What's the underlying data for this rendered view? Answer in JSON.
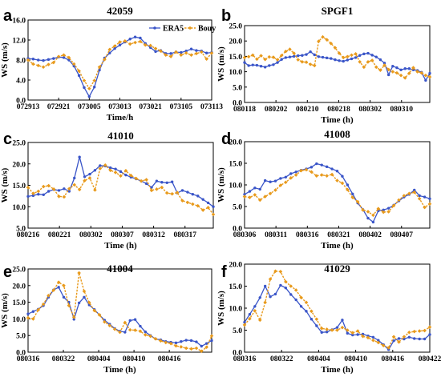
{
  "colors": {
    "era5": "#3A55C8",
    "buoy": "#E89A1C"
  },
  "legend": {
    "era5": "ERA5",
    "buoy": "Bouy",
    "placement": "top-right of panel a"
  },
  "chart_data": [
    {
      "type": "line",
      "letter": "a",
      "title": "42059",
      "xlabel": "Time/h",
      "ylabel": "WS (m/s)",
      "ylim": [
        0,
        16
      ],
      "yticks": [
        "0.0",
        "4.0",
        "8.0",
        "12.0",
        "16.0"
      ],
      "xticks": [
        "072913",
        "072921",
        "073005",
        "073013",
        "073021",
        "073105",
        "073113"
      ],
      "xlim": [
        0,
        36
      ],
      "series": [
        {
          "name": "ERA5",
          "x": [
            0,
            1,
            2,
            3,
            4,
            5,
            6,
            7,
            8,
            9,
            10,
            11,
            12,
            13,
            14,
            15,
            16,
            17,
            18,
            19,
            20,
            21,
            22,
            23,
            24,
            25,
            26,
            27,
            28,
            29,
            30,
            31,
            32,
            33,
            34,
            35,
            36
          ],
          "values": [
            8.3,
            8.2,
            8.0,
            7.9,
            8.1,
            8.3,
            8.6,
            8.5,
            8.0,
            6.8,
            4.9,
            2.5,
            0.7,
            2.6,
            6.0,
            8.4,
            9.4,
            10.3,
            11.0,
            11.6,
            12.2,
            12.6,
            12.4,
            11.3,
            10.5,
            9.7,
            9.9,
            9.3,
            9.3,
            9.6,
            9.5,
            9.8,
            10.2,
            9.9,
            9.8,
            9.4,
            9.5
          ]
        },
        {
          "name": "Bouy",
          "x": [
            0,
            1,
            2,
            3,
            4,
            5,
            6,
            7,
            8,
            9,
            10,
            11,
            12,
            13,
            14,
            15,
            16,
            17,
            18,
            19,
            20,
            21,
            22,
            23,
            24,
            25,
            26,
            27,
            28,
            29,
            30,
            31,
            32,
            33,
            34,
            35,
            36
          ],
          "values": [
            8.0,
            7.2,
            6.9,
            6.6,
            7.1,
            7.5,
            8.7,
            9.0,
            8.5,
            7.2,
            5.8,
            3.9,
            2.3,
            3.9,
            6.6,
            8.1,
            10.1,
            10.8,
            11.6,
            11.8,
            11.2,
            11.5,
            11.7,
            11.0,
            10.9,
            10.3,
            9.8,
            9.0,
            8.7,
            9.6,
            9.0,
            9.4,
            9.0,
            9.3,
            9.6,
            8.2,
            9.4
          ]
        }
      ]
    },
    {
      "type": "line",
      "letter": "b",
      "title": "SPGF1",
      "xlabel": "Time (h)",
      "ylabel": "WS (m/s)",
      "ylim": [
        0,
        25
      ],
      "yticks": [
        "0.0",
        "5.0",
        "10.0",
        "15.0",
        "20.0",
        "25.0"
      ],
      "xticks": [
        "080118",
        "080202",
        "080210",
        "080218",
        "080302",
        "080310"
      ],
      "xlim": [
        0,
        45
      ],
      "series": [
        {
          "name": "ERA5",
          "x": [
            0,
            1,
            2,
            3,
            4,
            5,
            6,
            7,
            8,
            9,
            10,
            11,
            12,
            13,
            14,
            15,
            16,
            17,
            18,
            19,
            20,
            21,
            22,
            23,
            24,
            25,
            26,
            27,
            28,
            29,
            30,
            31,
            32,
            33,
            34,
            35,
            36,
            37,
            38,
            39,
            40,
            41,
            42,
            43,
            44,
            45
          ],
          "values": [
            13.0,
            12.0,
            12.2,
            12.1,
            11.8,
            11.5,
            12.0,
            12.3,
            13.0,
            14.0,
            14.6,
            14.8,
            15.0,
            15.2,
            15.3,
            15.6,
            16.5,
            15.5,
            14.9,
            14.7,
            14.5,
            14.3,
            13.9,
            13.6,
            13.4,
            13.8,
            14.2,
            14.6,
            15.3,
            15.8,
            16.0,
            15.4,
            14.8,
            13.9,
            12.8,
            9.0,
            11.8,
            11.3,
            10.6,
            11.0,
            11.0,
            10.6,
            10.4,
            9.8,
            7.2,
            9.5
          ]
        },
        {
          "name": "Bouy",
          "x": [
            0,
            1,
            2,
            3,
            4,
            5,
            6,
            7,
            8,
            9,
            10,
            11,
            12,
            13,
            14,
            15,
            16,
            17,
            18,
            19,
            20,
            21,
            22,
            23,
            24,
            25,
            26,
            27,
            28,
            29,
            30,
            31,
            32,
            33,
            34,
            35,
            36,
            37,
            38,
            39,
            40,
            41,
            42,
            43,
            44,
            45
          ],
          "values": [
            14.6,
            14.9,
            15.4,
            14.1,
            15.2,
            14.0,
            14.8,
            14.7,
            13.9,
            15.3,
            16.6,
            17.3,
            16.0,
            13.9,
            13.2,
            13.1,
            12.4,
            12.0,
            19.9,
            21.3,
            20.4,
            19.2,
            17.8,
            16.0,
            14.6,
            14.9,
            15.4,
            15.8,
            13.2,
            11.5,
            13.2,
            13.7,
            11.5,
            10.5,
            12.1,
            10.7,
            10.0,
            9.6,
            8.8,
            8.0,
            9.5,
            11.3,
            10.0,
            9.6,
            8.8,
            8.3
          ]
        }
      ]
    },
    {
      "type": "line",
      "letter": "c",
      "title": "41010",
      "xlabel": "Time (h)",
      "ylabel": "WS (m/s)",
      "ylim": [
        5,
        25
      ],
      "yticks": [
        "5.0",
        "10.0",
        "15.0",
        "20.0",
        "25.0"
      ],
      "xticks": [
        "080216",
        "080221",
        "080302",
        "080307",
        "080312",
        "080317"
      ],
      "xlim": [
        0,
        36
      ],
      "series": [
        {
          "name": "ERA5",
          "x": [
            0,
            1,
            2,
            3,
            4,
            5,
            6,
            7,
            8,
            9,
            10,
            11,
            12,
            13,
            14,
            15,
            16,
            17,
            18,
            19,
            20,
            21,
            22,
            23,
            24,
            25,
            26,
            27,
            28,
            29,
            30,
            31,
            32,
            33,
            34,
            35,
            36
          ],
          "values": [
            12.4,
            12.6,
            12.9,
            12.8,
            13.6,
            14.0,
            13.8,
            14.2,
            13.6,
            16.7,
            21.6,
            17.0,
            17.6,
            18.5,
            19.6,
            19.5,
            19.1,
            18.8,
            18.2,
            17.4,
            16.9,
            16.5,
            16.0,
            15.4,
            14.5,
            16.0,
            15.7,
            15.6,
            15.8,
            13.2,
            13.8,
            13.4,
            12.9,
            12.5,
            11.7,
            10.9,
            10.0
          ]
        },
        {
          "name": "Bouy",
          "x": [
            0,
            1,
            2,
            3,
            4,
            5,
            6,
            7,
            8,
            9,
            10,
            11,
            12,
            13,
            14,
            15,
            16,
            17,
            18,
            19,
            20,
            21,
            22,
            23,
            24,
            25,
            26,
            27,
            28,
            29,
            30,
            31,
            32,
            33,
            34,
            35,
            36
          ],
          "values": [
            14.5,
            13.1,
            13.6,
            14.7,
            14.9,
            14.1,
            12.4,
            12.3,
            14.2,
            15.1,
            14.0,
            16.1,
            16.7,
            13.9,
            18.9,
            19.7,
            18.5,
            18.0,
            17.2,
            18.4,
            17.3,
            16.6,
            16.0,
            16.3,
            13.8,
            14.1,
            14.5,
            13.2,
            13.0,
            13.3,
            11.4,
            11.0,
            10.6,
            10.2,
            9.2,
            9.8,
            8.2
          ]
        }
      ]
    },
    {
      "type": "line",
      "letter": "d",
      "title": "41008",
      "xlabel": "Time (h)",
      "ylabel": "WS (m/s)",
      "ylim": [
        0,
        20
      ],
      "yticks": [
        "0.0",
        "5.0",
        "10.0",
        "15.0",
        "20.0"
      ],
      "xticks": [
        "080306",
        "080311",
        "080316",
        "080321",
        "080402",
        "080407"
      ],
      "xlim": [
        0,
        36
      ],
      "series": [
        {
          "name": "ERA5",
          "x": [
            0,
            1,
            2,
            3,
            4,
            5,
            6,
            7,
            8,
            9,
            10,
            11,
            12,
            13,
            14,
            15,
            16,
            17,
            18,
            19,
            20,
            21,
            22,
            23,
            24,
            25,
            26,
            27,
            28,
            29,
            30,
            31,
            32,
            33,
            34,
            35,
            36
          ],
          "values": [
            7.8,
            8.5,
            9.3,
            9.0,
            11.0,
            10.7,
            10.9,
            11.5,
            11.8,
            12.6,
            13.0,
            13.4,
            13.7,
            14.1,
            14.9,
            14.6,
            14.2,
            13.7,
            13.2,
            12.0,
            10.0,
            7.9,
            5.8,
            4.3,
            2.3,
            1.4,
            4.0,
            4.2,
            4.6,
            5.3,
            6.3,
            7.2,
            7.8,
            8.8,
            7.5,
            7.2,
            6.8
          ]
        },
        {
          "name": "Bouy",
          "x": [
            0,
            1,
            2,
            3,
            4,
            5,
            6,
            7,
            8,
            9,
            10,
            11,
            12,
            13,
            14,
            15,
            16,
            17,
            18,
            19,
            20,
            21,
            22,
            23,
            24,
            25,
            26,
            27,
            28,
            29,
            30,
            31,
            32,
            33,
            34,
            35,
            36
          ],
          "values": [
            7.3,
            7.1,
            7.7,
            6.5,
            7.3,
            8.0,
            8.8,
            9.9,
            10.6,
            11.6,
            12.3,
            13.3,
            13.5,
            13.0,
            12.1,
            12.3,
            12.1,
            12.4,
            11.0,
            10.4,
            8.9,
            7.1,
            6.1,
            4.2,
            3.8,
            3.0,
            4.5,
            3.7,
            3.8,
            5.2,
            6.5,
            7.5,
            8.0,
            8.3,
            6.8,
            4.8,
            5.6
          ]
        }
      ]
    },
    {
      "type": "line",
      "letter": "e",
      "title": "41004",
      "xlabel": "Time (h)",
      "ylabel": "WS (m/s)",
      "ylim": [
        0,
        25
      ],
      "yticks": [
        "0.0",
        "5.0",
        "10.0",
        "15.0",
        "20.0",
        "25.0"
      ],
      "xticks": [
        "080316",
        "080322",
        "080404",
        "080410",
        "080416"
      ],
      "xlim": [
        0,
        36
      ],
      "series": [
        {
          "name": "ERA5",
          "x": [
            0,
            1,
            2,
            3,
            4,
            5,
            6,
            7,
            8,
            9,
            10,
            11,
            12,
            13,
            14,
            15,
            16,
            17,
            18,
            19,
            20,
            21,
            22,
            23,
            24,
            25,
            26,
            27,
            28,
            29,
            30,
            31,
            32,
            33,
            34,
            35,
            36
          ],
          "values": [
            11.5,
            12.2,
            12.9,
            14.0,
            16.5,
            18.7,
            19.5,
            16.5,
            15.0,
            9.9,
            14.8,
            16.5,
            14.2,
            12.8,
            11.2,
            9.6,
            8.4,
            7.1,
            6.3,
            6.0,
            9.5,
            9.8,
            7.8,
            6.1,
            5.0,
            4.0,
            3.7,
            3.2,
            3.0,
            2.8,
            3.2,
            3.6,
            3.5,
            3.1,
            1.8,
            2.6,
            3.5
          ]
        },
        {
          "name": "Bouy",
          "x": [
            0,
            1,
            2,
            3,
            4,
            5,
            6,
            7,
            8,
            9,
            10,
            11,
            12,
            13,
            14,
            15,
            16,
            17,
            18,
            19,
            20,
            21,
            22,
            23,
            24,
            25,
            26,
            27,
            28,
            29,
            30,
            31,
            32,
            33,
            34,
            35,
            36
          ],
          "values": [
            10.3,
            10.0,
            12.7,
            14.4,
            17.0,
            18.6,
            21.0,
            20.0,
            14.0,
            10.5,
            23.8,
            18.3,
            14.9,
            12.5,
            11.2,
            9.1,
            8.0,
            6.9,
            6.0,
            8.9,
            6.7,
            6.6,
            6.3,
            5.2,
            4.8,
            4.0,
            3.4,
            2.9,
            2.6,
            1.9,
            1.6,
            1.2,
            1.0,
            1.2,
            0.3,
            1.5,
            4.9
          ]
        }
      ]
    },
    {
      "type": "line",
      "letter": "f",
      "title": "41029",
      "xlabel": "Time (h)",
      "ylabel": "WS (m/s)",
      "ylim": [
        0,
        20
      ],
      "yticks": [
        "0.0",
        "5.0",
        "10.0",
        "15.0",
        "20.0"
      ],
      "xticks": [
        "080316",
        "080322",
        "080404",
        "080410",
        "080416",
        "080422"
      ],
      "xlim": [
        0,
        36
      ],
      "series": [
        {
          "name": "ERA5",
          "x": [
            0,
            1,
            2,
            3,
            4,
            5,
            6,
            7,
            8,
            9,
            10,
            11,
            12,
            13,
            14,
            15,
            16,
            17,
            18,
            19,
            20,
            21,
            22,
            23,
            24,
            25,
            26,
            27,
            28,
            29,
            30,
            31,
            32,
            33,
            34,
            35,
            36
          ],
          "values": [
            6.8,
            8.6,
            10.4,
            12.4,
            15.0,
            12.6,
            13.2,
            15.2,
            14.6,
            13.1,
            11.9,
            10.4,
            9.3,
            7.5,
            6.0,
            4.5,
            4.6,
            5.1,
            5.6,
            7.3,
            4.3,
            3.9,
            4.0,
            4.1,
            3.7,
            3.4,
            2.7,
            1.7,
            0.6,
            2.6,
            3.1,
            3.0,
            3.4,
            3.1,
            3.0,
            3.0,
            4.0
          ]
        },
        {
          "name": "Bouy",
          "x": [
            0,
            1,
            2,
            3,
            4,
            5,
            6,
            7,
            8,
            9,
            10,
            11,
            12,
            13,
            14,
            15,
            16,
            17,
            18,
            19,
            20,
            21,
            22,
            23,
            24,
            25,
            26,
            27,
            28,
            29,
            30,
            31,
            32,
            33,
            34,
            35,
            36
          ],
          "values": [
            6.2,
            7.6,
            9.4,
            7.3,
            11.3,
            16.6,
            18.4,
            18.3,
            16.0,
            15.0,
            14.1,
            12.4,
            11.3,
            9.3,
            7.5,
            5.4,
            5.2,
            5.0,
            5.0,
            5.6,
            5.0,
            4.4,
            4.8,
            3.6,
            3.3,
            2.7,
            2.2,
            1.5,
            1.0,
            3.5,
            2.3,
            3.5,
            4.5,
            4.7,
            4.8,
            4.9,
            5.7
          ]
        }
      ]
    }
  ]
}
